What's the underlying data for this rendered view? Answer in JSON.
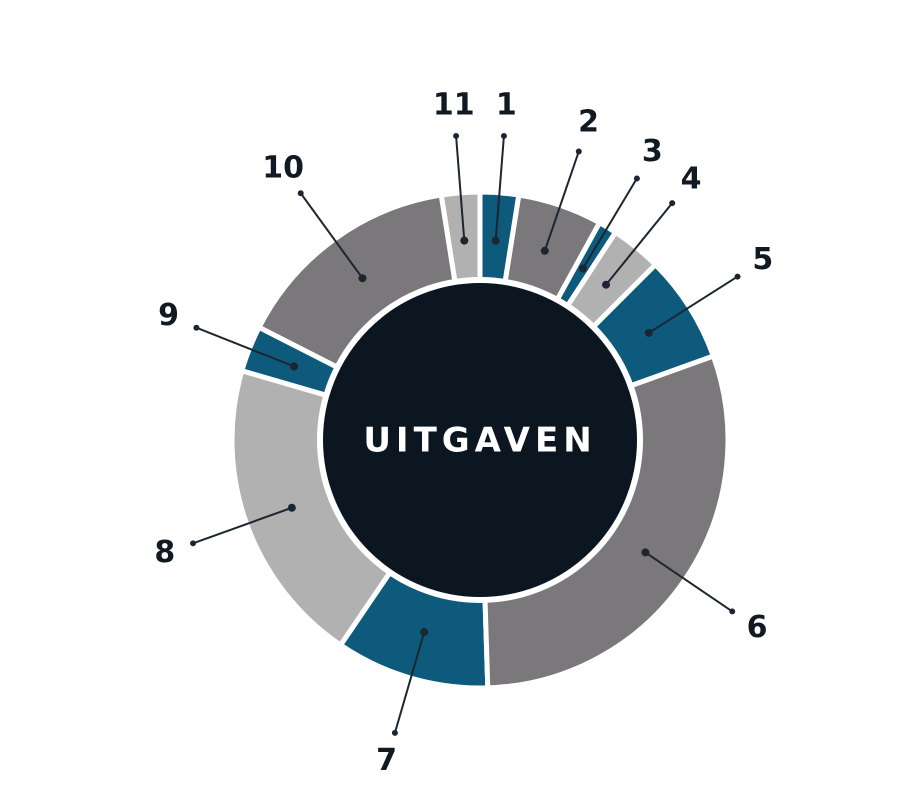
{
  "chart_data": {
    "type": "donut",
    "center_label": "UITGAVEN",
    "categories": [
      "1",
      "2",
      "3",
      "4",
      "5",
      "6",
      "7",
      "8",
      "9",
      "10",
      "11"
    ],
    "values": [
      2.5,
      5.5,
      1.2,
      3.3,
      7,
      30,
      10,
      20,
      3,
      15,
      2.5
    ],
    "colors": [
      "#0e5a7c",
      "#7a787b",
      "#0e5a7c",
      "#b2b1b2",
      "#0e5a7c",
      "#7a787b",
      "#0e5a7c",
      "#b2b1b2",
      "#0e5a7c",
      "#7a787b",
      "#b2b1b2"
    ]
  }
}
